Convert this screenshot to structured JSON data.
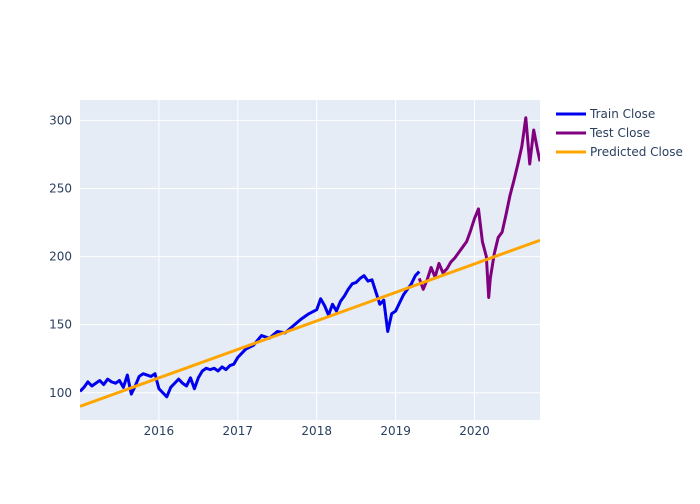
{
  "chart_data": {
    "type": "line",
    "title": "",
    "xlabel": "",
    "ylabel": "",
    "xlim": [
      2015.0,
      2020.83
    ],
    "ylim": [
      80,
      315
    ],
    "x_ticks": [
      2016,
      2017,
      2018,
      2019,
      2020
    ],
    "x_tick_labels": [
      "2016",
      "2017",
      "2018",
      "2019",
      "2020"
    ],
    "y_ticks": [
      100,
      150,
      200,
      250,
      300
    ],
    "y_tick_labels": [
      "100",
      "150",
      "200",
      "250",
      "300"
    ],
    "grid": true,
    "legend_position": "top-right",
    "background": "#e5ecf6",
    "series": [
      {
        "name": "Train Close",
        "color": "#0000ee",
        "x": [
          2015.0,
          2015.05,
          2015.1,
          2015.15,
          2015.2,
          2015.25,
          2015.3,
          2015.35,
          2015.4,
          2015.45,
          2015.5,
          2015.55,
          2015.6,
          2015.65,
          2015.7,
          2015.75,
          2015.8,
          2015.85,
          2015.9,
          2015.95,
          2016.0,
          2016.05,
          2016.1,
          2016.15,
          2016.2,
          2016.25,
          2016.3,
          2016.35,
          2016.4,
          2016.45,
          2016.5,
          2016.55,
          2016.6,
          2016.65,
          2016.7,
          2016.75,
          2016.8,
          2016.85,
          2016.9,
          2016.95,
          2017.0,
          2017.1,
          2017.2,
          2017.3,
          2017.4,
          2017.5,
          2017.6,
          2017.7,
          2017.8,
          2017.9,
          2018.0,
          2018.05,
          2018.1,
          2018.15,
          2018.2,
          2018.25,
          2018.3,
          2018.35,
          2018.4,
          2018.45,
          2018.5,
          2018.55,
          2018.6,
          2018.65,
          2018.7,
          2018.75,
          2018.8,
          2018.85,
          2018.9,
          2018.95,
          2019.0,
          2019.05,
          2019.1,
          2019.15,
          2019.2,
          2019.25,
          2019.3
        ],
        "values": [
          101,
          104,
          108,
          105,
          107,
          109,
          106,
          110,
          108,
          107,
          109,
          104,
          113,
          99,
          105,
          112,
          114,
          113,
          112,
          114,
          103,
          100,
          97,
          104,
          107,
          110,
          107,
          105,
          111,
          103,
          111,
          116,
          118,
          117,
          118,
          116,
          119,
          117,
          120,
          121,
          126,
          132,
          135,
          142,
          140,
          145,
          144,
          149,
          154,
          158,
          161,
          169,
          164,
          157,
          165,
          160,
          167,
          171,
          176,
          180,
          181,
          184,
          186,
          182,
          183,
          174,
          165,
          168,
          145,
          158,
          160,
          166,
          172,
          176,
          180,
          186,
          189
        ]
      },
      {
        "name": "Test Close",
        "color": "#800080",
        "x": [
          2019.3,
          2019.35,
          2019.4,
          2019.45,
          2019.5,
          2019.55,
          2019.6,
          2019.65,
          2019.7,
          2019.75,
          2019.8,
          2019.85,
          2019.9,
          2019.95,
          2020.0,
          2020.05,
          2020.1,
          2020.15,
          2020.18,
          2020.2,
          2020.25,
          2020.3,
          2020.35,
          2020.4,
          2020.45,
          2020.5,
          2020.55,
          2020.6,
          2020.65,
          2020.7,
          2020.75,
          2020.8,
          2020.83
        ],
        "values": [
          184,
          176,
          183,
          192,
          185,
          195,
          188,
          191,
          196,
          199,
          203,
          207,
          211,
          219,
          228,
          235,
          211,
          200,
          170,
          184,
          202,
          214,
          218,
          231,
          245,
          256,
          268,
          281,
          302,
          268,
          293,
          278,
          270
        ]
      },
      {
        "name": "Predicted Close",
        "color": "#ffa500",
        "x": [
          2015.0,
          2020.83
        ],
        "values": [
          90,
          212
        ]
      }
    ]
  }
}
